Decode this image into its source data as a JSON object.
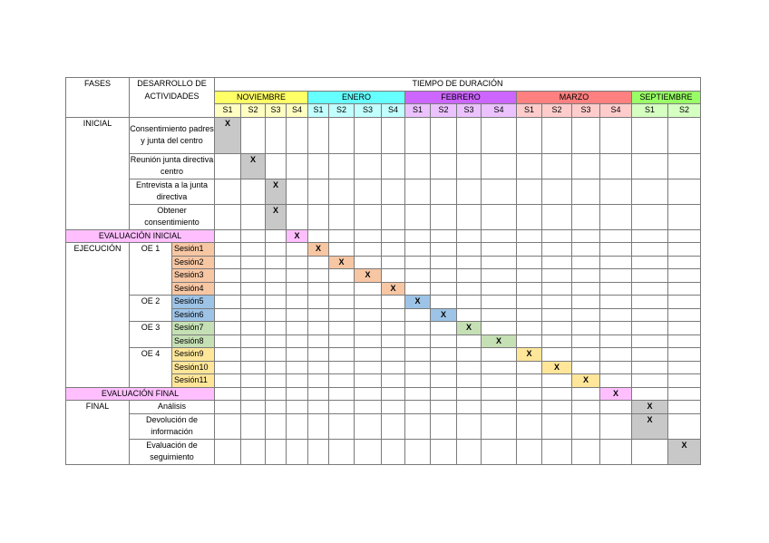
{
  "headers": {
    "fases": "FASES",
    "actividades": "DESARROLLO DE ACTIVIDADES",
    "tiempo": "TIEMPO DE DURACIÓN"
  },
  "months": [
    {
      "name": "NOVIEMBRE",
      "color": "#ffff66",
      "weeks": [
        "S1",
        "S2",
        "S3",
        "S4"
      ]
    },
    {
      "name": "ENERO",
      "color": "#66ffff",
      "weeks": [
        "S1",
        "S2",
        "S3",
        "S4"
      ]
    },
    {
      "name": "FEBRERO",
      "color": "#cc66ff",
      "weeks": [
        "S1",
        "S2",
        "S3",
        "S4"
      ]
    },
    {
      "name": "MARZO",
      "color": "#ff8080",
      "weeks": [
        "S1",
        "S2",
        "S3",
        "S4"
      ]
    },
    {
      "name": "SEPTIEMBRE",
      "color": "#99ff66",
      "weeks": [
        "S1",
        "S2"
      ]
    }
  ],
  "mark": "X",
  "phases": {
    "inicial": "INICIAL",
    "ejecucion": "EJECUCIÓN",
    "final": "FINAL",
    "eval_inicial": "EVALUACIÓN INICIAL",
    "eval_final": "EVALUACIÓN FINAL"
  },
  "activities": {
    "consentimiento": "Consentimiento padres y junta del centro",
    "reunion": "Reunión junta directiva centro",
    "entrevista": "Entrevista a la junta directiva",
    "obtener": "Obtener consentimiento",
    "analisis": "Análisis",
    "devolucion": "Devolución de información",
    "seguimiento": "Evaluación de seguimiento"
  },
  "objectives": [
    "OE 1",
    "OE 2",
    "OE 3",
    "OE 4"
  ],
  "sessions": [
    "Sesión1",
    "Sesión2",
    "Sesión3",
    "Sesión4",
    "Sesión5",
    "Sesión6",
    "Sesión7",
    "Sesión8",
    "Sesión9",
    "Sesión10",
    "Sesión11"
  ],
  "colors": {
    "gray": "#c8c8c8",
    "pink": "#ffbfff",
    "orange": "#f7c6a3",
    "blue": "#9dc3e6",
    "green": "#c5e0b4",
    "yellow": "#ffe699"
  }
}
